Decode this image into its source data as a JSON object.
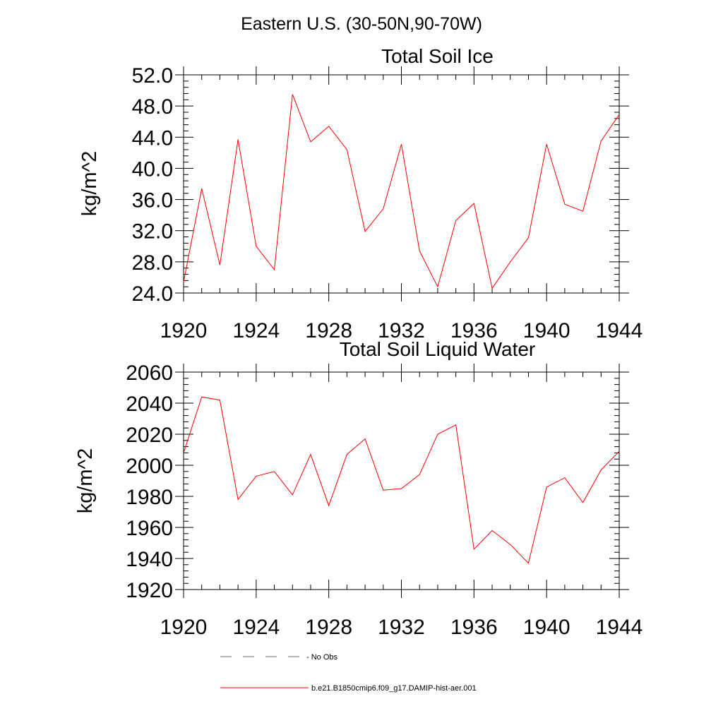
{
  "figure": {
    "suptitle": "Eastern U.S. (30-50N,90-70W)"
  },
  "legend": [
    {
      "label": "No Obs",
      "color": "#5a6a8c",
      "style": "dashed"
    },
    {
      "label": "b.e21.B1850cmip6.f09_g17.DAMIP-hist-aer.001",
      "color": "#ff0000",
      "style": "solid"
    }
  ],
  "chart_data": [
    {
      "type": "line",
      "title": "Total Soil Ice",
      "xlabel": "",
      "ylabel": "kg/m^2",
      "xlim": [
        1920,
        1944
      ],
      "ylim": [
        24.0,
        52.0
      ],
      "xticks": [
        "1920",
        "1924",
        "1928",
        "1932",
        "1936",
        "1940",
        "1944"
      ],
      "yticks": [
        "24.0",
        "28.0",
        "32.0",
        "36.0",
        "40.0",
        "44.0",
        "48.0",
        "52.0"
      ],
      "x": [
        1920,
        1921,
        1922,
        1923,
        1924,
        1925,
        1926,
        1927,
        1928,
        1929,
        1930,
        1931,
        1932,
        1933,
        1934,
        1935,
        1936,
        1937,
        1938,
        1939,
        1940,
        1941,
        1942,
        1943,
        1944
      ],
      "series": [
        {
          "color": "#ff0000",
          "values": [
            25.4,
            37.4,
            27.6,
            43.7,
            30.0,
            27.0,
            49.5,
            43.4,
            45.4,
            42.4,
            31.9,
            34.8,
            43.1,
            29.4,
            24.8,
            33.3,
            35.5,
            24.6,
            28.0,
            31.1,
            43.1,
            35.4,
            34.5,
            43.5,
            46.9
          ]
        }
      ]
    },
    {
      "type": "line",
      "title": "Total Soil Liquid Water",
      "xlabel": "",
      "ylabel": "kg/m^2",
      "xlim": [
        1920,
        1944
      ],
      "ylim": [
        1920,
        2060
      ],
      "xticks": [
        "1920",
        "1924",
        "1928",
        "1932",
        "1936",
        "1940",
        "1944"
      ],
      "yticks": [
        "1920",
        "1940",
        "1960",
        "1980",
        "2000",
        "2020",
        "2040",
        "2060"
      ],
      "x": [
        1920,
        1921,
        1922,
        1923,
        1924,
        1925,
        1926,
        1927,
        1928,
        1929,
        1930,
        1931,
        1932,
        1933,
        1934,
        1935,
        1936,
        1937,
        1938,
        1939,
        1940,
        1941,
        1942,
        1943,
        1944
      ],
      "series": [
        {
          "color": "#ff0000",
          "values": [
            2008,
            2044,
            2042,
            1978,
            1993,
            1996,
            1981,
            2007,
            1974,
            2007,
            2017,
            1984,
            1985,
            1994,
            2020,
            2026,
            1946,
            1958,
            1949,
            1937,
            1986,
            1992,
            1976,
            1997,
            2009
          ]
        }
      ]
    }
  ]
}
